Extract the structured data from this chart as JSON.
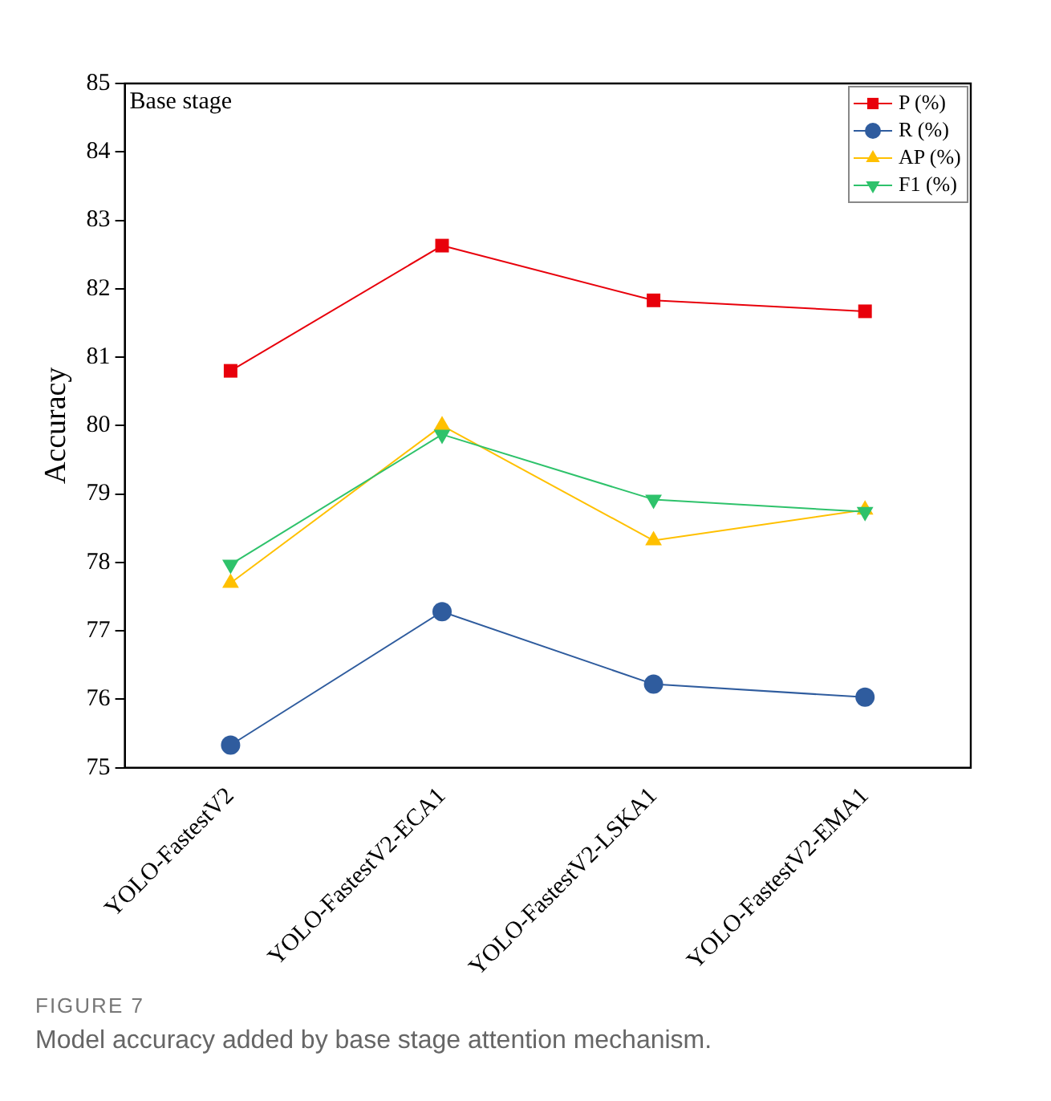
{
  "chart_data": {
    "type": "line",
    "ylabel": "Accuracy",
    "categories": [
      "YOLO-FastestV2",
      "YOLO-FastestV2-ECA1",
      "YOLO-FastestV2-LSKA1",
      "YOLO-FastestV2-EMA1"
    ],
    "series": [
      {
        "name": "P (%)",
        "color": "#e8000b",
        "marker": "square",
        "values": [
          80.8,
          82.63,
          81.83,
          81.67
        ]
      },
      {
        "name": "R (%)",
        "color": "#2f5c9e",
        "marker": "circle",
        "values": [
          75.33,
          77.28,
          76.22,
          76.03
        ]
      },
      {
        "name": "AP (%)",
        "color": "#ffc000",
        "marker": "triangle",
        "values": [
          77.7,
          80.0,
          78.32,
          78.77
        ]
      },
      {
        "name": "F1 (%)",
        "color": "#2ec26b",
        "marker": "triangle",
        "values": [
          77.97,
          79.87,
          78.92,
          78.74
        ]
      }
    ],
    "ylim": [
      75,
      85
    ],
    "yticks": [
      75,
      76,
      77,
      78,
      79,
      80,
      81,
      82,
      83,
      84,
      85
    ],
    "grid": false,
    "legend": "top right",
    "line_style": "solid",
    "annotations": [
      "Base stage",
      "FIGURE 7",
      "Model accuracy added by base stage attention mechanism."
    ]
  }
}
